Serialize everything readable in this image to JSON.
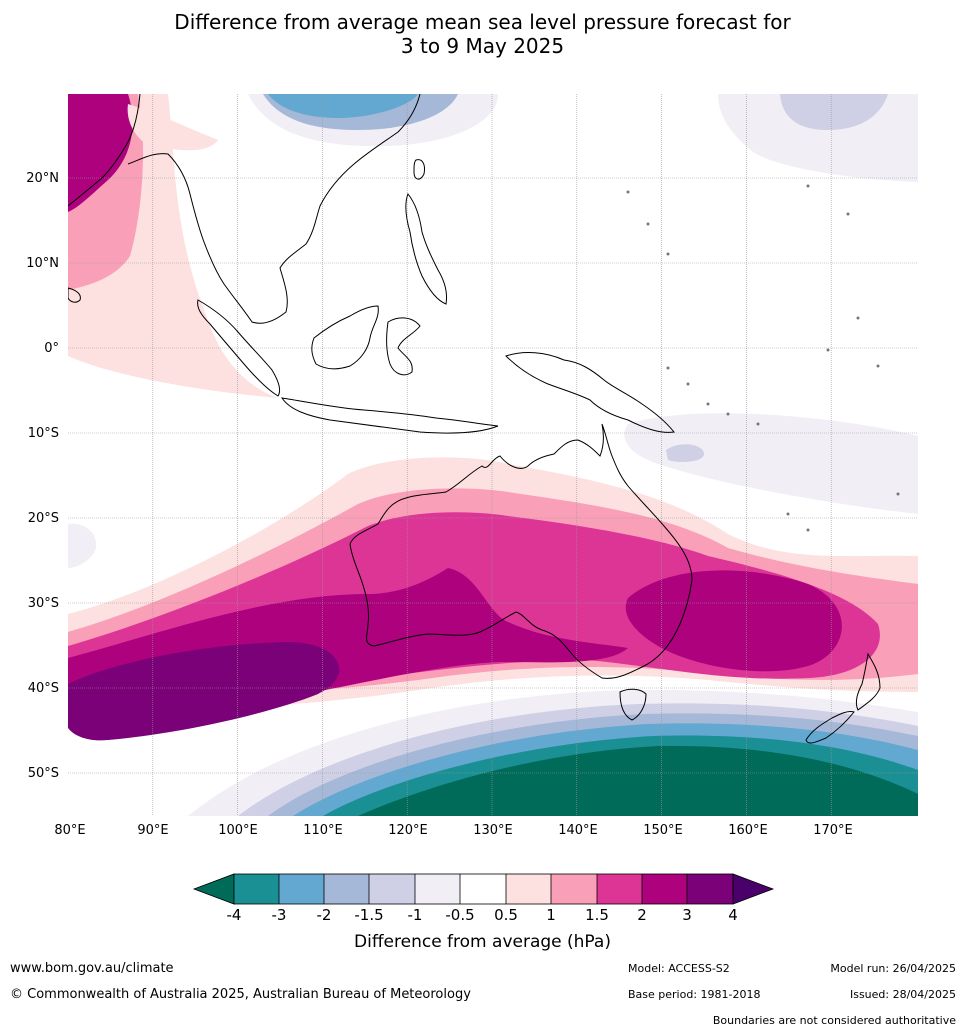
{
  "title": {
    "line1": "Difference from average mean sea level pressure forecast for",
    "line2": "3 to 9 May 2025"
  },
  "lat_labels": [
    "20°N",
    "10°N",
    "0°",
    "10°S",
    "20°S",
    "30°S",
    "40°S",
    "50°S"
  ],
  "lon_labels": [
    "80°E",
    "90°E",
    "100°E",
    "110°E",
    "120°E",
    "130°E",
    "140°E",
    "150°E",
    "160°E",
    "170°E"
  ],
  "colorbar": {
    "label": "Difference from average (hPa)",
    "ticks": [
      "-4",
      "-3",
      "-2",
      "-1.5",
      "-1",
      "-0.5",
      "0.5",
      "1",
      "1.5",
      "2",
      "3",
      "4"
    ],
    "colors": {
      "below_-4": "#006b58",
      "-4_-3": "#1a9095",
      "-3_-2": "#63a8d0",
      "-2_-1.5": "#a6b8d8",
      "-1.5_-1": "#cfd0e6",
      "-1_-0.5": "#f1eff5",
      "-0.5_0.5": "#ffffff",
      "0.5_1": "#fde0e0",
      "1_1.5": "#f99fb8",
      "1.5_2": "#dd3596",
      "2_3": "#ad017e",
      "3_4": "#7a0177",
      "above_4": "#49006a"
    }
  },
  "footer": {
    "website": "www.bom.gov.au/climate",
    "copyright": "© Commonwealth of Australia 2025, Australian Bureau of Meteorology",
    "model": "Model: ACCESS-S2",
    "base_period": "Base period: 1981-2018",
    "model_run": "Model run: 26/04/2025",
    "issued": "Issued: 28/04/2025",
    "disclaimer": "Boundaries are not considered authoritative"
  }
}
